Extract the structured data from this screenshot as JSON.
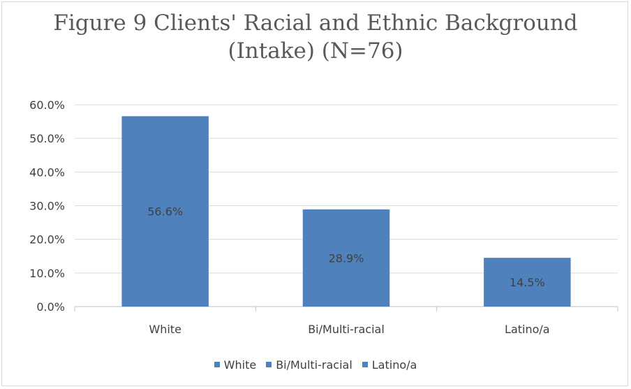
{
  "chart_data": {
    "type": "bar",
    "title_lines": [
      "Figure 9 Clients' Racial and Ethnic Background",
      "(Intake) (N=76)"
    ],
    "categories": [
      "White",
      "Bi/Multi-racial",
      "Latino/a"
    ],
    "series": [
      {
        "values": [
          56.6,
          28.9,
          14.5
        ],
        "data_labels": [
          "56.6%",
          "28.9%",
          "14.5%"
        ]
      }
    ],
    "ylim": [
      0,
      60
    ],
    "yticks": [
      0,
      10,
      20,
      30,
      40,
      50,
      60
    ],
    "ytick_labels": [
      "0.0%",
      "10.0%",
      "20.0%",
      "30.0%",
      "40.0%",
      "50.0%",
      "60.0%"
    ],
    "grid": true,
    "legend_position": "bottom",
    "legend": [
      "White",
      "Bi/Multi-racial",
      "Latino/a"
    ],
    "bar_color": "#4f81bd"
  }
}
